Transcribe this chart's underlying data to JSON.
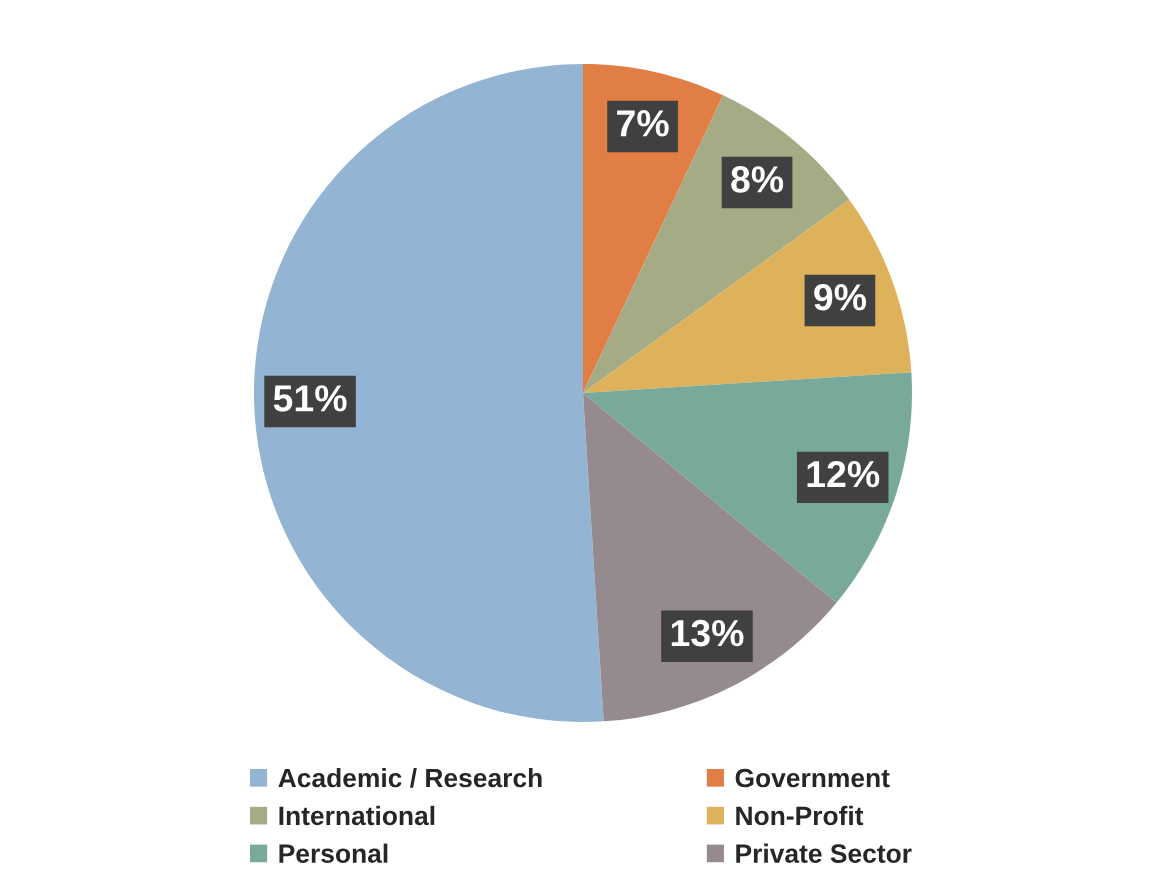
{
  "chart_data": {
    "type": "pie",
    "categories": [
      "Academic / Research",
      "Government",
      "International",
      "Non-Profit",
      "Personal",
      "Private Sector"
    ],
    "values": [
      51,
      7,
      8,
      9,
      12,
      13
    ],
    "colors": [
      "#93b5d3",
      "#e07e45",
      "#a4ab85",
      "#deb25a",
      "#78a99a",
      "#958b8e"
    ],
    "value_labels": [
      "51%",
      "7%",
      "8%",
      "9%",
      "12%",
      "13%"
    ],
    "legend": "bottom"
  }
}
